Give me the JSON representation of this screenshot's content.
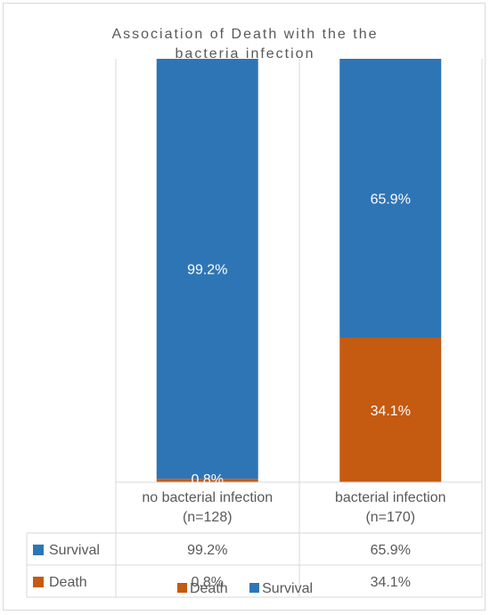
{
  "chart_data": {
    "type": "bar",
    "stacked": true,
    "stack_percent": true,
    "title": "Association of Death with the the bacteria infection",
    "categories": [
      "no bacterial infection (n=128)",
      "bacterial infection (n=170)"
    ],
    "category_lines": [
      [
        "no bacterial infection",
        "(n=128)"
      ],
      [
        "bacterial infection",
        "(n=170)"
      ]
    ],
    "series": [
      {
        "name": "Death",
        "values": [
          0.8,
          34.1
        ],
        "labels": [
          "0.8%",
          "34.1%"
        ],
        "color": "#c55a11"
      },
      {
        "name": "Survival",
        "values": [
          99.2,
          65.9
        ],
        "labels": [
          "99.2%",
          "65.9%"
        ],
        "color": "#2e75b6"
      }
    ],
    "table_rows": [
      {
        "name": "Survival",
        "cells": [
          "99.2%",
          "65.9%"
        ],
        "color": "#2e75b6"
      },
      {
        "name": "Death",
        "cells": [
          "0.8%",
          "34.1%"
        ],
        "color": "#c55a11"
      }
    ],
    "ylim": [
      0,
      100
    ],
    "data_table": true,
    "legend": {
      "position": "bottom",
      "entries": [
        "Death",
        "Survival"
      ]
    },
    "colors": {
      "grid": "#d9d9d9",
      "text": "#595959",
      "label": "#ffffff"
    }
  }
}
